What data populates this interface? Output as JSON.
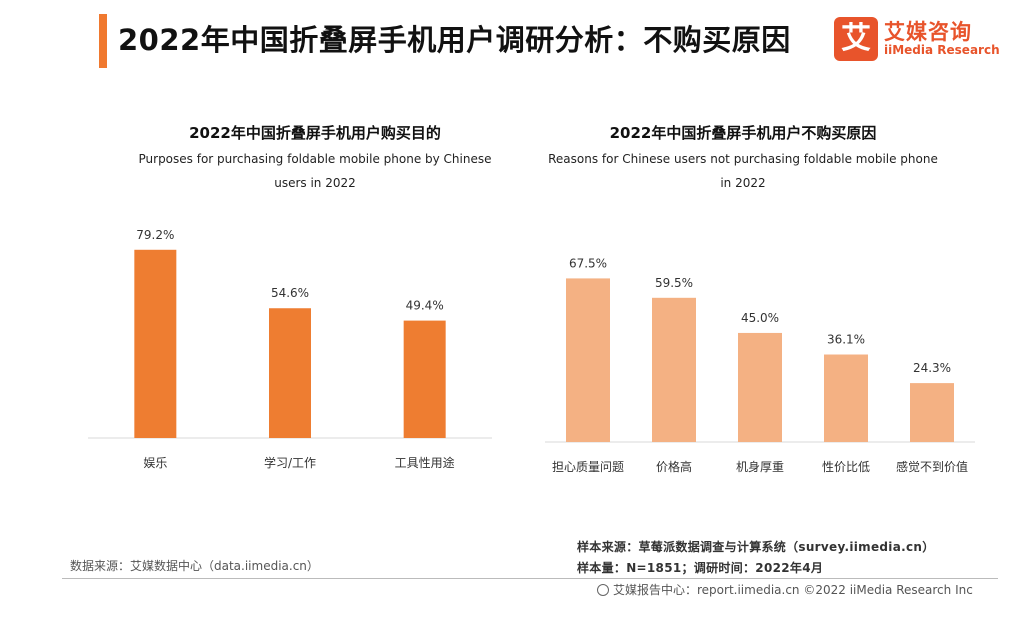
{
  "header": {
    "title": "2022年中国折叠屏手机用户调研分析：不购买原因",
    "logo_cn": "艾媒咨询",
    "logo_en": "iiMedia Research",
    "logo_mark": "艾"
  },
  "colors": {
    "accent": "#f0792f",
    "left_bar": "#ee7d31",
    "right_bar": "#f4b183",
    "axis": "#d9d9d9"
  },
  "chart_data": [
    {
      "type": "bar",
      "title": "2022年中国折叠屏手机用户购买目的",
      "subtitle": [
        "Purposes for purchasing foldable mobile phone by Chinese",
        "users in 2022"
      ],
      "categories": [
        "娱乐",
        "学习/工作",
        "工具性用途"
      ],
      "values": [
        79.2,
        54.6,
        49.4
      ],
      "value_labels": [
        "79.2%",
        "54.6%",
        "49.4%"
      ],
      "unit": "%",
      "ylim": [
        0,
        85
      ],
      "xlabel": "",
      "ylabel": ""
    },
    {
      "type": "bar",
      "title": "2022年中国折叠屏手机用户不购买原因",
      "subtitle": [
        "Reasons for Chinese users not purchasing foldable mobile phone",
        "in 2022"
      ],
      "categories": [
        "担心质量问题",
        "价格高",
        "机身厚重",
        "性价比低",
        "感觉不到价值"
      ],
      "values": [
        67.5,
        59.5,
        45.0,
        36.1,
        24.3
      ],
      "value_labels": [
        "67.5%",
        "59.5%",
        "45.0%",
        "36.1%",
        "24.3%"
      ],
      "unit": "%",
      "ylim": [
        0,
        85
      ],
      "xlabel": "",
      "ylabel": ""
    }
  ],
  "footer": {
    "data_source": "数据来源：艾媒数据中心（data.iimedia.cn）",
    "sample_source": "样本来源：草莓派数据调查与计算系统（survey.iimedia.cn）",
    "sample_size": "样本量：N=1851；调研时间：2022年4月",
    "copyright": "艾媒报告中心：report.iimedia.cn  ©2022 iiMedia Research Inc"
  }
}
